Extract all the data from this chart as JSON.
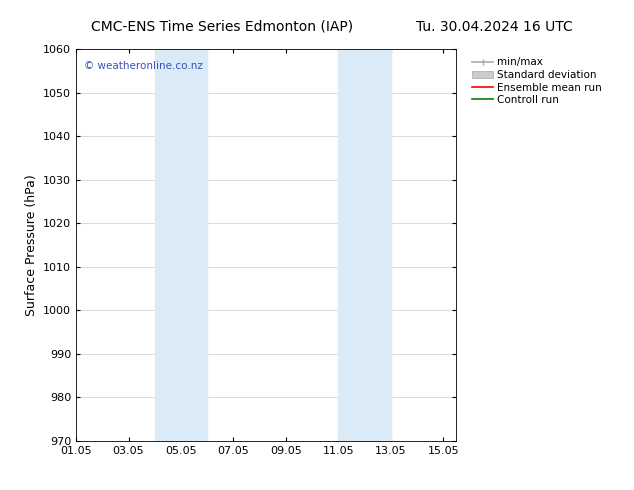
{
  "title_left": "CMC-ENS Time Series Edmonton (IAP)",
  "title_right": "Tu. 30.04.2024 16 UTC",
  "ylabel": "Surface Pressure (hPa)",
  "ylim": [
    970,
    1060
  ],
  "yticks": [
    970,
    980,
    990,
    1000,
    1010,
    1020,
    1030,
    1040,
    1050,
    1060
  ],
  "xlim": [
    1.0,
    15.5
  ],
  "xtick_labels": [
    "01.05",
    "03.05",
    "05.05",
    "07.05",
    "09.05",
    "11.05",
    "13.05",
    "15.05"
  ],
  "xtick_positions": [
    1,
    3,
    5,
    7,
    9,
    11,
    13,
    15
  ],
  "shaded_bands": [
    {
      "x_start": 4.0,
      "x_end": 5.0,
      "color": "#daeaf7"
    },
    {
      "x_start": 5.0,
      "x_end": 6.0,
      "color": "#daeaf7"
    },
    {
      "x_start": 11.0,
      "x_end": 12.0,
      "color": "#daeaf7"
    },
    {
      "x_start": 12.0,
      "x_end": 13.0,
      "color": "#daeaf7"
    }
  ],
  "watermark_text": "© weatheronline.co.nz",
  "watermark_color": "#3355bb",
  "background_color": "#ffffff",
  "grid_color": "#cccccc",
  "legend_items": [
    {
      "label": "min/max",
      "color": "#aaaaaa",
      "style": "line_with_caps"
    },
    {
      "label": "Standard deviation",
      "color": "#cccccc",
      "style": "filled_rect"
    },
    {
      "label": "Ensemble mean run",
      "color": "#ff0000",
      "style": "line"
    },
    {
      "label": "Controll run",
      "color": "#008000",
      "style": "line"
    }
  ],
  "title_fontsize": 10,
  "tick_fontsize": 8,
  "label_fontsize": 9,
  "legend_fontsize": 7.5
}
